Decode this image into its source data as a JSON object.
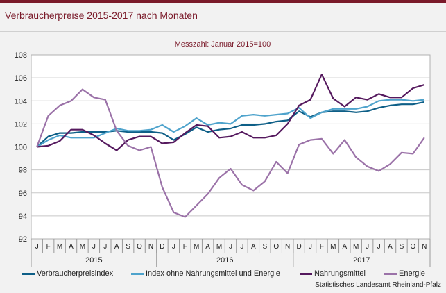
{
  "title": "Verbraucherpreise 2015-2017 nach Monaten",
  "source": "Statistisches Landesamt Rheinland-Pfalz",
  "colors": {
    "accent": "#7a1a2a",
    "series": [
      "#0e5f87",
      "#4ea3cc",
      "#55195e",
      "#9b72a8"
    ]
  },
  "chart_data": {
    "type": "line",
    "subtitle": "Messzahl: Januar 2015=100",
    "ylim": [
      92,
      108
    ],
    "yticks": [
      "92",
      "94",
      "96",
      "98",
      "100",
      "102",
      "104",
      "106",
      "108"
    ],
    "grid": "horizontal",
    "legend": "bottom",
    "month_labels": [
      "J",
      "F",
      "M",
      "A",
      "M",
      "J",
      "J",
      "A",
      "S",
      "O",
      "N",
      "D",
      "J",
      "F",
      "M",
      "A",
      "M",
      "J",
      "J",
      "A",
      "S",
      "O",
      "N",
      "D",
      "J",
      "F",
      "M",
      "A",
      "M",
      "J",
      "J",
      "A",
      "S",
      "O",
      "N"
    ],
    "years": [
      {
        "label": "2015"
      },
      {
        "label": "2016"
      },
      {
        "label": "2017"
      }
    ],
    "series": [
      {
        "name": "Verbraucherpreisindex",
        "values": [
          100.0,
          100.9,
          101.2,
          101.2,
          101.3,
          101.3,
          101.3,
          101.4,
          101.3,
          101.3,
          101.3,
          101.2,
          100.6,
          101.1,
          101.7,
          101.3,
          101.5,
          101.6,
          101.9,
          101.9,
          102.0,
          102.2,
          102.3,
          103.1,
          102.6,
          103.0,
          103.1,
          103.1,
          103.0,
          103.1,
          103.4,
          103.6,
          103.7,
          103.7,
          103.9
        ]
      },
      {
        "name": "Index ohne Nahrungsmittel und Energie",
        "values": [
          100.0,
          100.6,
          101.0,
          100.8,
          100.8,
          100.8,
          101.2,
          101.6,
          101.4,
          101.4,
          101.5,
          101.9,
          101.3,
          101.8,
          102.5,
          101.9,
          102.1,
          102.0,
          102.7,
          102.8,
          102.7,
          102.8,
          102.9,
          103.4,
          102.5,
          103.0,
          103.3,
          103.3,
          103.3,
          103.5,
          104.0,
          104.1,
          104.1,
          104.0,
          104.1
        ]
      },
      {
        "name": "Nahrungsmittel",
        "values": [
          100.0,
          100.1,
          100.5,
          101.5,
          101.5,
          101.0,
          100.3,
          99.7,
          100.6,
          100.9,
          100.9,
          100.3,
          100.4,
          101.2,
          101.9,
          101.8,
          100.8,
          100.9,
          101.3,
          100.8,
          100.8,
          101.0,
          102.0,
          103.6,
          104.1,
          106.3,
          104.2,
          103.5,
          104.3,
          104.1,
          104.6,
          104.3,
          104.3,
          105.1,
          105.4
        ]
      },
      {
        "name": "Energie",
        "values": [
          100.0,
          102.7,
          103.6,
          104.0,
          105.0,
          104.3,
          104.1,
          101.4,
          100.1,
          99.7,
          100.0,
          96.5,
          94.3,
          93.9,
          94.9,
          95.9,
          97.3,
          98.1,
          96.7,
          96.2,
          97.0,
          98.7,
          97.7,
          100.2,
          100.6,
          100.7,
          99.4,
          100.6,
          99.1,
          98.3,
          97.9,
          98.5,
          99.5,
          99.4,
          100.8
        ]
      }
    ]
  }
}
